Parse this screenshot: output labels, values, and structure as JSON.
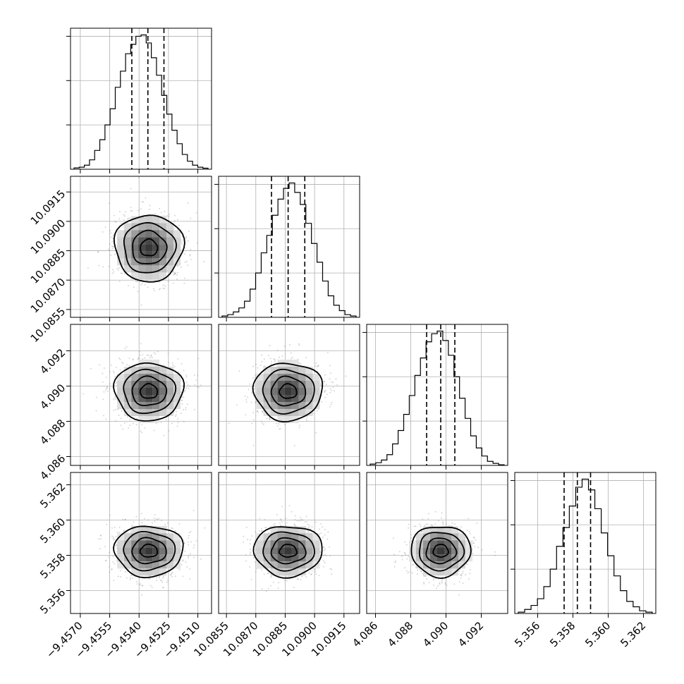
{
  "chart_data": {
    "type": "corner",
    "grid": true,
    "n_params": 4,
    "parameters": [
      {
        "mean": -9.4535,
        "sigma": 0.00085,
        "range": [
          -9.4575,
          -9.4503
        ],
        "ticks": [
          -9.457,
          -9.4555,
          -9.454,
          -9.4525,
          -9.451
        ],
        "tick_labels": [
          "−9.4570",
          "−9.4555",
          "−9.4540",
          "−9.4525",
          "−9.4510"
        ],
        "quantiles": [
          -9.45437,
          -9.45355,
          -9.45273
        ],
        "hist": [
          0.01,
          0.015,
          0.03,
          0.07,
          0.14,
          0.22,
          0.33,
          0.45,
          0.61,
          0.73,
          0.86,
          0.93,
          0.99,
          1.0,
          0.94,
          0.83,
          0.7,
          0.55,
          0.41,
          0.29,
          0.19,
          0.11,
          0.06,
          0.03,
          0.015,
          0.008
        ]
      },
      {
        "mean": 10.08865,
        "sigma": 0.00085,
        "range": [
          10.0851,
          10.0923
        ],
        "ticks": [
          10.0855,
          10.087,
          10.0885,
          10.09,
          10.0915
        ],
        "tick_labels": [
          "10.0855",
          "10.0870",
          "10.0885",
          "10.0900",
          "10.0915"
        ],
        "quantiles": [
          10.0878,
          10.08865,
          10.0895
        ],
        "hist": [
          0.01,
          0.02,
          0.04,
          0.07,
          0.12,
          0.21,
          0.33,
          0.48,
          0.61,
          0.76,
          0.88,
          0.96,
          1.0,
          0.93,
          0.84,
          0.7,
          0.55,
          0.41,
          0.27,
          0.16,
          0.09,
          0.05,
          0.02,
          0.01
        ]
      },
      {
        "mean": 4.0897,
        "sigma": 0.00082,
        "range": [
          4.0855,
          4.0935
        ],
        "ticks": [
          4.086,
          4.088,
          4.09,
          4.092
        ],
        "tick_labels": [
          "4.086",
          "4.088",
          "4.090",
          "4.092"
        ],
        "quantiles": [
          4.0889,
          4.0897,
          4.0905
        ],
        "hist": [
          0.01,
          0.02,
          0.04,
          0.08,
          0.16,
          0.26,
          0.38,
          0.52,
          0.67,
          0.8,
          0.92,
          0.98,
          1.0,
          0.93,
          0.82,
          0.66,
          0.5,
          0.35,
          0.22,
          0.13,
          0.07,
          0.03,
          0.015,
          0.005
        ]
      },
      {
        "mean": 5.35825,
        "sigma": 0.00072,
        "range": [
          5.3547,
          5.3627
        ],
        "ticks": [
          5.356,
          5.358,
          5.36,
          5.362
        ],
        "tick_labels": [
          "5.356",
          "5.358",
          "5.360",
          "5.362"
        ],
        "quantiles": [
          5.3575,
          5.35825,
          5.359
        ],
        "hist": [
          0.01,
          0.03,
          0.06,
          0.11,
          0.2,
          0.33,
          0.5,
          0.64,
          0.8,
          0.94,
          1.0,
          0.92,
          0.78,
          0.6,
          0.43,
          0.28,
          0.17,
          0.09,
          0.05,
          0.02,
          0.01
        ]
      }
    ]
  }
}
